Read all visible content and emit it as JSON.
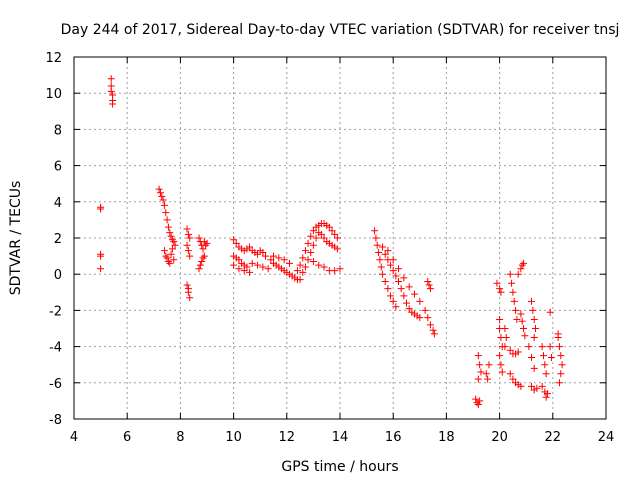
{
  "chart_data": {
    "type": "scatter",
    "title": "Day 244 of 2017, Sidereal Day-to-day VTEC variation (SDTVAR) for receiver tnsj",
    "xlabel": "GPS time / hours",
    "ylabel": "SDTVAR / TECUs",
    "xlim": [
      4,
      24
    ],
    "ylim": [
      -8,
      12
    ],
    "xticks": [
      4,
      6,
      8,
      10,
      12,
      14,
      16,
      18,
      20,
      22,
      24
    ],
    "yticks": [
      -8,
      -6,
      -4,
      -2,
      0,
      2,
      4,
      6,
      8,
      10,
      12
    ],
    "grid": true,
    "marker": "+",
    "color": "#ff0000",
    "series": [
      {
        "name": "SDTVAR",
        "points": [
          [
            5.0,
            3.7
          ],
          [
            5.0,
            3.6
          ],
          [
            5.0,
            1.1
          ],
          [
            5.0,
            1.0
          ],
          [
            5.0,
            0.3
          ],
          [
            5.4,
            10.8
          ],
          [
            5.4,
            10.4
          ],
          [
            5.4,
            10.1
          ],
          [
            5.45,
            9.9
          ],
          [
            5.45,
            9.6
          ],
          [
            5.45,
            9.4
          ],
          [
            7.2,
            4.7
          ],
          [
            7.25,
            4.5
          ],
          [
            7.3,
            4.3
          ],
          [
            7.35,
            4.1
          ],
          [
            7.4,
            3.8
          ],
          [
            7.45,
            3.4
          ],
          [
            7.5,
            3.0
          ],
          [
            7.55,
            2.6
          ],
          [
            7.6,
            2.3
          ],
          [
            7.65,
            2.1
          ],
          [
            7.7,
            1.9
          ],
          [
            7.75,
            1.8
          ],
          [
            7.8,
            1.6
          ],
          [
            7.4,
            1.3
          ],
          [
            7.45,
            1.0
          ],
          [
            7.5,
            0.9
          ],
          [
            7.55,
            0.7
          ],
          [
            7.6,
            0.6
          ],
          [
            7.65,
            1.1
          ],
          [
            7.7,
            1.4
          ],
          [
            7.75,
            0.8
          ],
          [
            8.25,
            2.5
          ],
          [
            8.3,
            2.2
          ],
          [
            8.35,
            2.0
          ],
          [
            8.25,
            1.6
          ],
          [
            8.3,
            1.3
          ],
          [
            8.35,
            1.0
          ],
          [
            8.25,
            -0.6
          ],
          [
            8.3,
            -0.8
          ],
          [
            8.3,
            -1.0
          ],
          [
            8.35,
            -1.3
          ],
          [
            8.7,
            2.0
          ],
          [
            8.75,
            1.8
          ],
          [
            8.8,
            1.6
          ],
          [
            8.85,
            1.4
          ],
          [
            8.9,
            1.8
          ],
          [
            8.95,
            1.6
          ],
          [
            9.0,
            1.7
          ],
          [
            8.7,
            0.3
          ],
          [
            8.75,
            0.5
          ],
          [
            8.8,
            0.7
          ],
          [
            8.85,
            0.9
          ],
          [
            8.9,
            1.0
          ],
          [
            10.0,
            1.9
          ],
          [
            10.1,
            1.7
          ],
          [
            10.2,
            1.5
          ],
          [
            10.3,
            1.4
          ],
          [
            10.4,
            1.3
          ],
          [
            10.5,
            1.4
          ],
          [
            10.6,
            1.5
          ],
          [
            10.0,
            1.0
          ],
          [
            10.1,
            0.9
          ],
          [
            10.2,
            0.8
          ],
          [
            10.3,
            0.6
          ],
          [
            10.4,
            0.5
          ],
          [
            10.5,
            0.4
          ],
          [
            10.0,
            0.5
          ],
          [
            10.2,
            0.3
          ],
          [
            10.4,
            0.2
          ],
          [
            10.6,
            0.1
          ],
          [
            10.7,
            1.3
          ],
          [
            10.8,
            1.2
          ],
          [
            10.9,
            1.1
          ],
          [
            11.0,
            1.3
          ],
          [
            11.1,
            1.2
          ],
          [
            11.2,
            1.0
          ],
          [
            10.7,
            0.6
          ],
          [
            10.9,
            0.5
          ],
          [
            11.1,
            0.4
          ],
          [
            11.3,
            0.3
          ],
          [
            11.4,
            0.8
          ],
          [
            11.5,
            0.6
          ],
          [
            11.6,
            0.5
          ],
          [
            11.7,
            0.4
          ],
          [
            11.8,
            0.3
          ],
          [
            11.9,
            0.2
          ],
          [
            11.5,
            1.0
          ],
          [
            11.7,
            0.9
          ],
          [
            11.9,
            0.8
          ],
          [
            12.1,
            0.6
          ],
          [
            12.0,
            0.1
          ],
          [
            12.1,
            0.0
          ],
          [
            12.2,
            -0.1
          ],
          [
            12.3,
            -0.2
          ],
          [
            12.4,
            -0.3
          ],
          [
            12.5,
            -0.3
          ],
          [
            12.4,
            0.2
          ],
          [
            12.5,
            0.5
          ],
          [
            12.6,
            0.9
          ],
          [
            12.7,
            1.3
          ],
          [
            12.8,
            1.7
          ],
          [
            12.9,
            2.1
          ],
          [
            13.0,
            2.4
          ],
          [
            12.6,
            0.1
          ],
          [
            12.7,
            0.4
          ],
          [
            12.8,
            0.8
          ],
          [
            12.9,
            1.2
          ],
          [
            13.0,
            1.6
          ],
          [
            13.1,
            2.0
          ],
          [
            13.2,
            2.3
          ],
          [
            13.1,
            2.6
          ],
          [
            13.2,
            2.7
          ],
          [
            13.3,
            2.8
          ],
          [
            13.4,
            2.8
          ],
          [
            13.5,
            2.7
          ],
          [
            13.6,
            2.6
          ],
          [
            13.7,
            2.4
          ],
          [
            13.8,
            2.2
          ],
          [
            13.9,
            2.0
          ],
          [
            13.3,
            2.2
          ],
          [
            13.4,
            2.0
          ],
          [
            13.5,
            1.8
          ],
          [
            13.6,
            1.7
          ],
          [
            13.7,
            1.6
          ],
          [
            13.8,
            1.5
          ],
          [
            13.9,
            1.4
          ],
          [
            13.0,
            0.7
          ],
          [
            13.2,
            0.5
          ],
          [
            13.4,
            0.4
          ],
          [
            13.6,
            0.2
          ],
          [
            13.8,
            0.2
          ],
          [
            14.0,
            0.3
          ],
          [
            15.3,
            2.4
          ],
          [
            15.35,
            2.0
          ],
          [
            15.4,
            1.6
          ],
          [
            15.45,
            1.2
          ],
          [
            15.5,
            0.8
          ],
          [
            15.55,
            0.4
          ],
          [
            15.6,
            0.0
          ],
          [
            15.7,
            -0.4
          ],
          [
            15.8,
            -0.8
          ],
          [
            15.9,
            -1.2
          ],
          [
            16.0,
            -1.5
          ],
          [
            16.1,
            -1.8
          ],
          [
            15.6,
            1.5
          ],
          [
            15.7,
            1.1
          ],
          [
            15.8,
            0.8
          ],
          [
            15.9,
            0.5
          ],
          [
            16.0,
            0.2
          ],
          [
            16.1,
            -0.1
          ],
          [
            16.2,
            -0.4
          ],
          [
            16.3,
            -0.8
          ],
          [
            16.4,
            -1.2
          ],
          [
            16.5,
            -1.6
          ],
          [
            16.6,
            -1.9
          ],
          [
            16.7,
            -2.1
          ],
          [
            16.8,
            -2.2
          ],
          [
            16.9,
            -2.3
          ],
          [
            17.0,
            -2.4
          ],
          [
            15.8,
            1.3
          ],
          [
            16.0,
            0.8
          ],
          [
            16.2,
            0.3
          ],
          [
            16.4,
            -0.2
          ],
          [
            16.6,
            -0.7
          ],
          [
            16.8,
            -1.1
          ],
          [
            17.0,
            -1.5
          ],
          [
            17.2,
            -2.0
          ],
          [
            17.3,
            -2.4
          ],
          [
            17.4,
            -2.8
          ],
          [
            17.5,
            -3.1
          ],
          [
            17.55,
            -3.3
          ],
          [
            17.3,
            -0.4
          ],
          [
            17.35,
            -0.6
          ],
          [
            17.4,
            -0.8
          ],
          [
            19.1,
            -6.9
          ],
          [
            19.15,
            -7.1
          ],
          [
            19.2,
            -7.2
          ],
          [
            19.25,
            -7.0
          ],
          [
            19.2,
            -4.5
          ],
          [
            19.25,
            -5.0
          ],
          [
            19.3,
            -5.4
          ],
          [
            19.2,
            -5.8
          ],
          [
            19.5,
            -5.5
          ],
          [
            19.6,
            -5.0
          ],
          [
            19.55,
            -5.8
          ],
          [
            19.9,
            -0.5
          ],
          [
            20.0,
            -0.8
          ],
          [
            20.05,
            -1.0
          ],
          [
            20.0,
            -2.5
          ],
          [
            20.0,
            -3.0
          ],
          [
            20.05,
            -3.5
          ],
          [
            20.1,
            -4.0
          ],
          [
            20.0,
            -4.5
          ],
          [
            20.05,
            -5.0
          ],
          [
            20.1,
            -5.4
          ],
          [
            20.2,
            -3.0
          ],
          [
            20.25,
            -3.5
          ],
          [
            20.2,
            -4.0
          ],
          [
            20.4,
            0.0
          ],
          [
            20.45,
            -0.5
          ],
          [
            20.5,
            -1.0
          ],
          [
            20.55,
            -1.5
          ],
          [
            20.6,
            -2.0
          ],
          [
            20.65,
            -2.5
          ],
          [
            20.4,
            -4.2
          ],
          [
            20.5,
            -4.4
          ],
          [
            20.6,
            -4.4
          ],
          [
            20.7,
            -4.3
          ],
          [
            20.4,
            -5.5
          ],
          [
            20.5,
            -5.8
          ],
          [
            20.6,
            -6.0
          ],
          [
            20.7,
            -6.1
          ],
          [
            20.8,
            -6.2
          ],
          [
            20.8,
            0.3
          ],
          [
            20.85,
            0.5
          ],
          [
            20.9,
            0.6
          ],
          [
            20.7,
            0.0
          ],
          [
            20.8,
            -2.2
          ],
          [
            20.85,
            -2.6
          ],
          [
            20.9,
            -3.0
          ],
          [
            20.95,
            -3.4
          ],
          [
            21.2,
            -1.5
          ],
          [
            21.25,
            -2.0
          ],
          [
            21.3,
            -2.5
          ],
          [
            21.35,
            -3.0
          ],
          [
            21.3,
            -3.5
          ],
          [
            21.1,
            -4.0
          ],
          [
            21.2,
            -4.6
          ],
          [
            21.3,
            -5.2
          ],
          [
            21.2,
            -6.2
          ],
          [
            21.3,
            -6.4
          ],
          [
            21.4,
            -6.3
          ],
          [
            21.6,
            -4.0
          ],
          [
            21.65,
            -4.5
          ],
          [
            21.7,
            -5.0
          ],
          [
            21.75,
            -5.5
          ],
          [
            21.6,
            -6.2
          ],
          [
            21.7,
            -6.5
          ],
          [
            21.8,
            -6.6
          ],
          [
            21.75,
            -6.8
          ],
          [
            21.9,
            -2.1
          ],
          [
            21.9,
            -4.0
          ],
          [
            21.95,
            -4.6
          ],
          [
            22.2,
            -3.5
          ],
          [
            22.25,
            -4.0
          ],
          [
            22.3,
            -4.5
          ],
          [
            22.35,
            -5.0
          ],
          [
            22.3,
            -5.5
          ],
          [
            22.25,
            -6.0
          ],
          [
            22.2,
            -3.3
          ]
        ]
      }
    ]
  }
}
